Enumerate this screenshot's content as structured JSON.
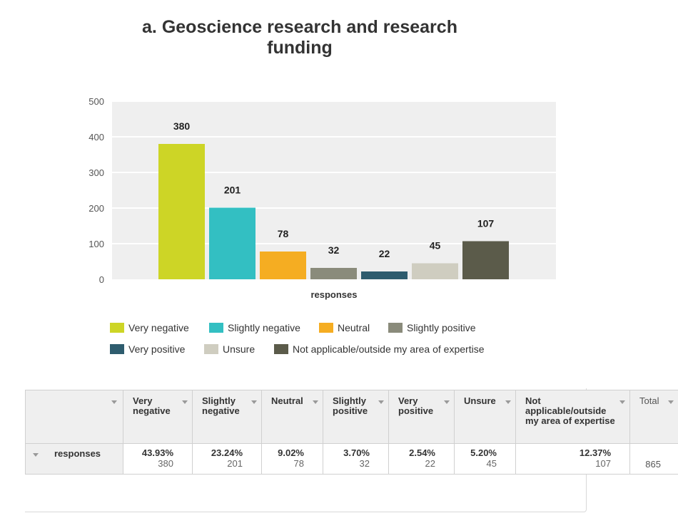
{
  "chart_data": {
    "type": "bar",
    "title": "a. Geoscience research and research funding",
    "xlabel": "responses",
    "ylabel": "",
    "ylim": [
      0,
      500
    ],
    "yticks": [
      0,
      100,
      200,
      300,
      400,
      500
    ],
    "categories": [
      "Very negative",
      "Slightly negative",
      "Neutral",
      "Slightly positive",
      "Very positive",
      "Unsure",
      "Not applicable/outside my area of expertise"
    ],
    "values": [
      380,
      201,
      78,
      32,
      22,
      45,
      107
    ],
    "colors": [
      "#cdd526",
      "#33bfc2",
      "#f5ad22",
      "#8a8b7b",
      "#2e5c6e",
      "#cfcdc0",
      "#5b5b4a"
    ],
    "grid": true,
    "legend_position": "bottom"
  },
  "title_lines": [
    "a. Geoscience research and research funding"
  ],
  "legend": [
    {
      "label": "Very negative",
      "color": "#cdd526"
    },
    {
      "label": "Slightly negative",
      "color": "#33bfc2"
    },
    {
      "label": "Neutral",
      "color": "#f5ad22"
    },
    {
      "label": "Slightly positive",
      "color": "#8a8b7b"
    },
    {
      "label": "Very positive",
      "color": "#2e5c6e"
    },
    {
      "label": "Unsure",
      "color": "#cfcdc0"
    },
    {
      "label": "Not applicable/outside my area of expertise",
      "color": "#5b5b4a"
    }
  ],
  "table": {
    "headers": [
      "Very negative",
      "Slightly negative",
      "Neutral",
      "Slightly positive",
      "Very positive",
      "Unsure",
      "Not applicable/outside my area of expertise"
    ],
    "total_header": "Total",
    "row": {
      "label": "responses",
      "cells": [
        {
          "pct": "43.93%",
          "count": "380"
        },
        {
          "pct": "23.24%",
          "count": "201"
        },
        {
          "pct": "9.02%",
          "count": "78"
        },
        {
          "pct": "3.70%",
          "count": "32"
        },
        {
          "pct": "2.54%",
          "count": "22"
        },
        {
          "pct": "5.20%",
          "count": "45"
        },
        {
          "pct": "12.37%",
          "count": "107"
        }
      ],
      "total": "865"
    }
  }
}
